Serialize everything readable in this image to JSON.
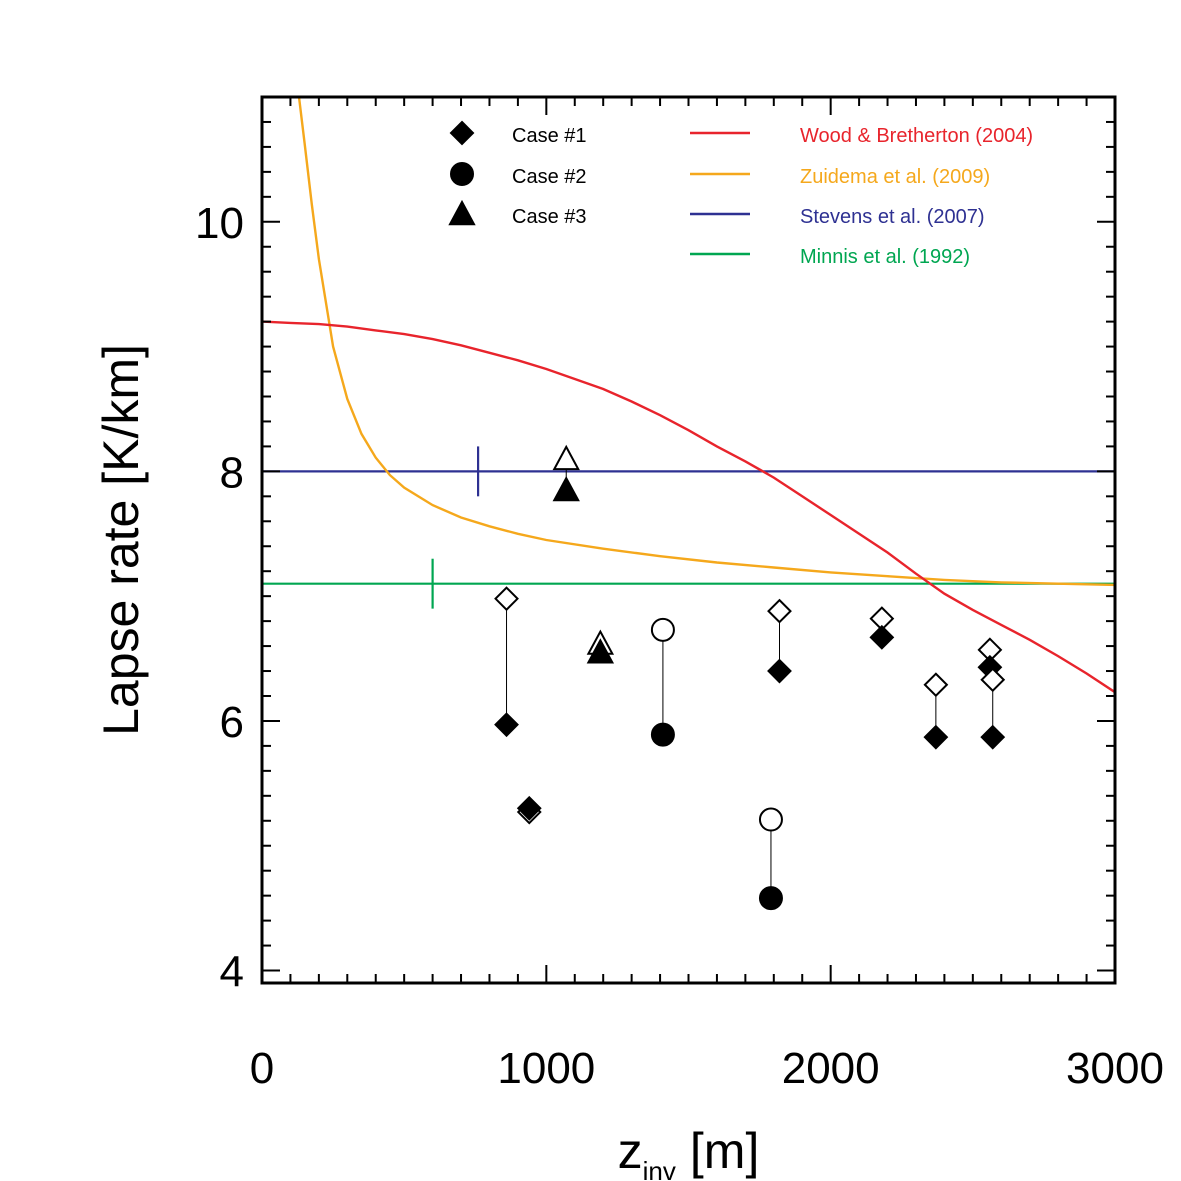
{
  "chart_data": {
    "type": "scatter",
    "title": "",
    "xlabel": {
      "main": "z",
      "sub": "inv",
      "unit": "[m]"
    },
    "ylabel": "Lapse rate [K/km]",
    "xlim": [
      0,
      3000
    ],
    "ylim": [
      3.9,
      11.0
    ],
    "x_ticks": [
      0,
      1000,
      2000,
      3000
    ],
    "x_tick_labels": [
      "0",
      "1000",
      "2000",
      "3000"
    ],
    "y_ticks": [
      4,
      6,
      8,
      10
    ],
    "y_tick_labels": [
      "4",
      "6",
      "8",
      "10"
    ],
    "grid": false,
    "legend_position": "top",
    "colors": {
      "wood": "#e8242c",
      "zuidema": "#f5a81c",
      "stevens": "#2e3192",
      "minnis": "#00a651",
      "markers": "#000000"
    },
    "markers_legend": [
      {
        "name": "Case #1",
        "marker": "diamond"
      },
      {
        "name": "Case #2",
        "marker": "circle"
      },
      {
        "name": "Case #3",
        "marker": "triangle"
      }
    ],
    "lines_legend": [
      {
        "name": "Wood & Bretherton (2004)",
        "color_key": "wood"
      },
      {
        "name": "Zuidema et al. (2009)",
        "color_key": "zuidema"
      },
      {
        "name": "Stevens et al. (2007)",
        "color_key": "stevens"
      },
      {
        "name": "Minnis et al. (1992)",
        "color_key": "minnis"
      }
    ],
    "reference_lines": {
      "stevens": {
        "y": 8.0,
        "tick_x": 760,
        "tick_halfheight": 0.2
      },
      "minnis": {
        "y": 7.1,
        "tick_x": 600,
        "tick_halfheight": 0.2
      }
    },
    "curves": {
      "wood": {
        "x": [
          0,
          100,
          200,
          300,
          400,
          500,
          600,
          700,
          800,
          900,
          1000,
          1100,
          1200,
          1300,
          1400,
          1500,
          1600,
          1700,
          1800,
          1900,
          2000,
          2100,
          2200,
          2300,
          2400,
          2500,
          2600,
          2700,
          2800,
          2900,
          3000
        ],
        "y": [
          9.2,
          9.19,
          9.18,
          9.16,
          9.13,
          9.1,
          9.06,
          9.01,
          8.95,
          8.89,
          8.82,
          8.74,
          8.66,
          8.56,
          8.45,
          8.33,
          8.2,
          8.08,
          7.95,
          7.8,
          7.65,
          7.5,
          7.35,
          7.18,
          7.02,
          6.89,
          6.77,
          6.65,
          6.52,
          6.38,
          6.23
        ]
      },
      "zuidema": {
        "x": [
          130,
          150,
          175,
          200,
          250,
          300,
          350,
          400,
          450,
          500,
          600,
          700,
          800,
          900,
          1000,
          1200,
          1400,
          1600,
          1800,
          2000,
          2200,
          2400,
          2600,
          2800,
          3000
        ],
        "y": [
          11.0,
          10.63,
          10.14,
          9.7,
          9.0,
          8.58,
          8.3,
          8.11,
          7.97,
          7.87,
          7.73,
          7.63,
          7.56,
          7.5,
          7.45,
          7.38,
          7.32,
          7.27,
          7.23,
          7.19,
          7.16,
          7.13,
          7.11,
          7.1,
          7.09
        ]
      }
    },
    "pairs": [
      {
        "case": "Case #1",
        "marker": "diamond",
        "x": 860,
        "y_open": 6.98,
        "y_filled": 5.97
      },
      {
        "case": "Case #1",
        "marker": "diamond",
        "x": 940,
        "y_open": 5.27,
        "y_filled": 5.3
      },
      {
        "case": "Case #1",
        "marker": "diamond",
        "x": 1820,
        "y_open": 6.88,
        "y_filled": 6.4
      },
      {
        "case": "Case #1",
        "marker": "diamond",
        "x": 2180,
        "y_open": 6.82,
        "y_filled": 6.67
      },
      {
        "case": "Case #1",
        "marker": "diamond",
        "x": 2370,
        "y_open": 6.29,
        "y_filled": 5.87
      },
      {
        "case": "Case #1",
        "marker": "diamond",
        "x": 2560,
        "y_open": 6.57,
        "y_filled": 6.43
      },
      {
        "case": "Case #1",
        "marker": "diamond",
        "x": 2570,
        "y_open": 6.33,
        "y_filled": 5.87
      },
      {
        "case": "Case #2",
        "marker": "circle",
        "x": 1410,
        "y_open": 6.73,
        "y_filled": 5.89
      },
      {
        "case": "Case #2",
        "marker": "circle",
        "x": 1790,
        "y_open": 5.21,
        "y_filled": 4.58
      },
      {
        "case": "Case #3",
        "marker": "triangle",
        "x": 1070,
        "y_open": 8.1,
        "y_filled": 7.85
      },
      {
        "case": "Case #3",
        "marker": "triangle",
        "x": 1190,
        "y_open": 6.62,
        "y_filled": 6.55
      }
    ]
  }
}
